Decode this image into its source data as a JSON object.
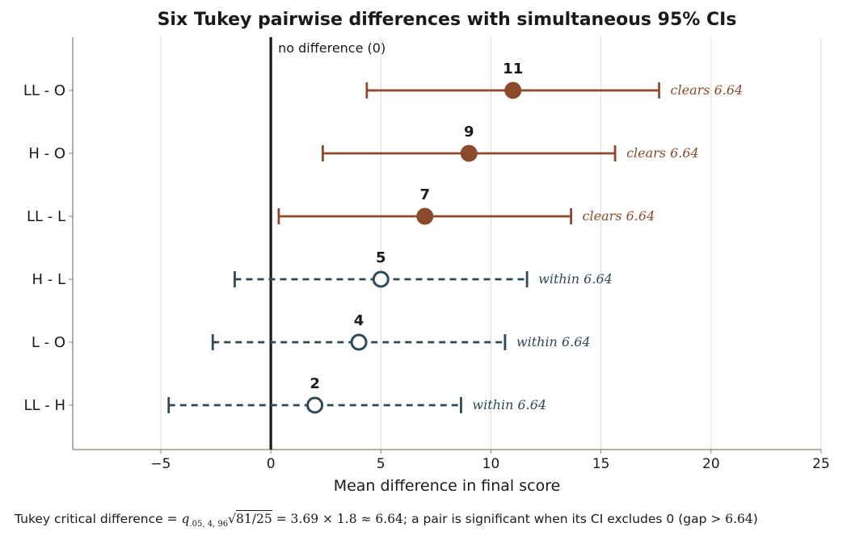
{
  "chart_data": {
    "type": "errorbar",
    "title": "Six Tukey pairwise differences with simultaneous 95% CIs",
    "xlabel": "Mean difference in final score",
    "ylabel": "",
    "xlim": [
      -9,
      25
    ],
    "xticks": [
      -5,
      0,
      5,
      10,
      15,
      20,
      25
    ],
    "xtick_labels": [
      "−5",
      "0",
      "5",
      "10",
      "15",
      "20",
      "25"
    ],
    "grid": "vertical",
    "reference_line": {
      "x": 0,
      "label": "no difference (0)"
    },
    "categories": [
      "LL - O",
      "H - O",
      "LL - L",
      "H - L",
      "L - O",
      "LL - H"
    ],
    "points": [
      {
        "label": "LL - O",
        "estimate": 11,
        "estimate_label": "11",
        "lower": 4.36,
        "upper": 17.64,
        "significant": true,
        "status": "clears 6.64"
      },
      {
        "label": "H - O",
        "estimate": 9,
        "estimate_label": "9",
        "lower": 2.36,
        "upper": 15.64,
        "significant": true,
        "status": "clears 6.64"
      },
      {
        "label": "LL - L",
        "estimate": 7,
        "estimate_label": "7",
        "lower": 0.36,
        "upper": 13.64,
        "significant": true,
        "status": "clears 6.64"
      },
      {
        "label": "H - L",
        "estimate": 5,
        "estimate_label": "5",
        "lower": -1.64,
        "upper": 11.64,
        "significant": false,
        "status": "within 6.64"
      },
      {
        "label": "L - O",
        "estimate": 4,
        "estimate_label": "4",
        "lower": -2.64,
        "upper": 10.64,
        "significant": false,
        "status": "within 6.64"
      },
      {
        "label": "LL - H",
        "estimate": 2,
        "estimate_label": "2",
        "lower": -4.64,
        "upper": 8.64,
        "significant": false,
        "status": "within 6.64"
      }
    ],
    "colors": {
      "significant": "#8b4a2b",
      "not_significant": "#2e4a58",
      "reference": "#1a1a1a",
      "grid": "#dcdcdc",
      "axis": "#8a8070"
    }
  },
  "footnote": {
    "lead": "Tukey critical difference ",
    "eq1": "= ",
    "q": "q",
    "q_sub": ".05, 4, 96",
    "sqrt": "√",
    "sqrt_arg": "81/25",
    "eq2": " = 3.69 × 1.8 ≈ 6.64",
    "rest": "; a pair is significant when its CI excludes 0 (gap ",
    "gt": "> 6.64",
    "close": ")"
  }
}
